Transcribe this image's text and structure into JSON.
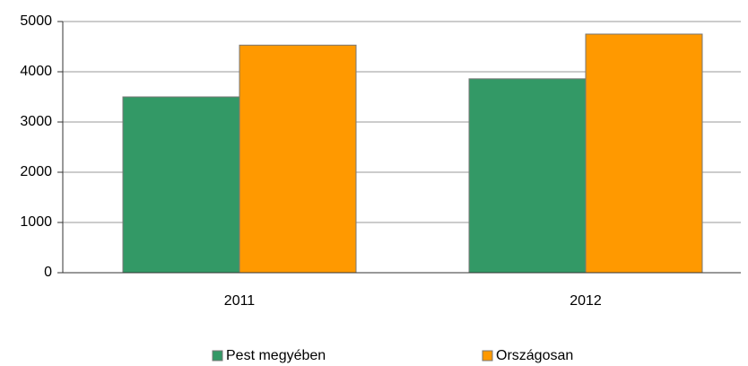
{
  "chart_data": {
    "type": "bar",
    "categories": [
      "2011",
      "2012"
    ],
    "series": [
      {
        "name": "Pest megyében",
        "color": "#339966",
        "values": [
          3500,
          3860
        ]
      },
      {
        "name": "Országosan",
        "color": "#ff9900",
        "values": [
          4530,
          4750
        ]
      }
    ],
    "ylim": [
      0,
      5000
    ],
    "yticks": [
      0,
      1000,
      2000,
      3000,
      4000,
      5000
    ],
    "grid": true,
    "legend": "bottom"
  }
}
